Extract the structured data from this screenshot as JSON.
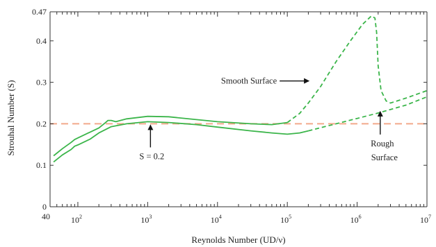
{
  "colors": {
    "curve": "#3bb54a",
    "reference_line": "#f2a98a",
    "axis": "#333333",
    "arrow": "#111111"
  },
  "chart_data": {
    "type": "line",
    "xlabel": "Reynolds Number (UD/ν)",
    "ylabel": "Strouhal Number (S)",
    "x_scale": "log",
    "xlim": [
      40,
      10000000
    ],
    "ylim": [
      0,
      0.47
    ],
    "grid": false,
    "x_ticks": [
      {
        "value": 40,
        "base": "40",
        "exp": ""
      },
      {
        "value": 100,
        "base": "10",
        "exp": "2"
      },
      {
        "value": 1000,
        "base": "10",
        "exp": "3"
      },
      {
        "value": 10000,
        "base": "10",
        "exp": "4"
      },
      {
        "value": 100000,
        "base": "10",
        "exp": "5"
      },
      {
        "value": 1000000,
        "base": "10",
        "exp": "6"
      },
      {
        "value": 10000000,
        "base": "10",
        "exp": "7"
      }
    ],
    "y_ticks": [
      {
        "value": 0,
        "label": "0"
      },
      {
        "value": 0.1,
        "label": "0.1"
      },
      {
        "value": 0.2,
        "label": "0.2"
      },
      {
        "value": 0.3,
        "label": "0.3"
      },
      {
        "value": 0.4,
        "label": "0.4"
      },
      {
        "value": 0.47,
        "label": "0.47"
      }
    ],
    "series": [
      {
        "style": "solid",
        "points": [
          [
            45,
            0.123
          ],
          [
            60,
            0.14
          ],
          [
            80,
            0.155
          ],
          [
            90,
            0.162
          ],
          [
            100,
            0.166
          ],
          [
            150,
            0.18
          ],
          [
            200,
            0.19
          ],
          [
            250,
            0.203
          ],
          [
            270,
            0.208
          ],
          [
            300,
            0.208
          ],
          [
            350,
            0.205
          ],
          [
            500,
            0.212
          ],
          [
            1000,
            0.218
          ],
          [
            2000,
            0.217
          ],
          [
            5000,
            0.21
          ],
          [
            10000,
            0.205
          ],
          [
            30000,
            0.2
          ],
          [
            60000,
            0.198
          ],
          [
            100000,
            0.203
          ]
        ]
      },
      {
        "style": "dashed",
        "points": [
          [
            100000,
            0.203
          ],
          [
            150000,
            0.225
          ],
          [
            200000,
            0.25
          ],
          [
            300000,
            0.29
          ],
          [
            500000,
            0.35
          ],
          [
            800000,
            0.4
          ],
          [
            1200000,
            0.44
          ],
          [
            1600000,
            0.46
          ],
          [
            1800000,
            0.455
          ],
          [
            1900000,
            0.42
          ],
          [
            2000000,
            0.34
          ],
          [
            2200000,
            0.28
          ],
          [
            2600000,
            0.255
          ],
          [
            3000000,
            0.25
          ],
          [
            5000000,
            0.262
          ],
          [
            10000000,
            0.28
          ]
        ]
      },
      {
        "style": "solid",
        "points": [
          [
            45,
            0.108
          ],
          [
            60,
            0.125
          ],
          [
            80,
            0.138
          ],
          [
            90,
            0.146
          ],
          [
            100,
            0.149
          ],
          [
            150,
            0.163
          ],
          [
            200,
            0.178
          ],
          [
            300,
            0.193
          ],
          [
            500,
            0.2
          ],
          [
            1000,
            0.205
          ],
          [
            2000,
            0.203
          ],
          [
            5000,
            0.198
          ],
          [
            10000,
            0.192
          ],
          [
            30000,
            0.183
          ],
          [
            60000,
            0.178
          ],
          [
            100000,
            0.175
          ],
          [
            150000,
            0.178
          ],
          [
            200000,
            0.183
          ]
        ]
      },
      {
        "style": "dashed",
        "points": [
          [
            200000,
            0.183
          ],
          [
            500000,
            0.2
          ],
          [
            1000000,
            0.213
          ],
          [
            2000000,
            0.226
          ],
          [
            5000000,
            0.245
          ],
          [
            10000000,
            0.265
          ]
        ]
      }
    ],
    "reference_line": {
      "y": 0.2,
      "style": "dashed"
    },
    "annotations": [
      {
        "text": "S = 0.2",
        "target": [
          1000,
          0.2
        ]
      },
      {
        "text": "Smooth Surface",
        "target": [
          250000,
          0.31
        ]
      },
      {
        "text": "Rough",
        "text2": "Surface",
        "target": [
          2000000,
          0.226
        ]
      }
    ]
  }
}
